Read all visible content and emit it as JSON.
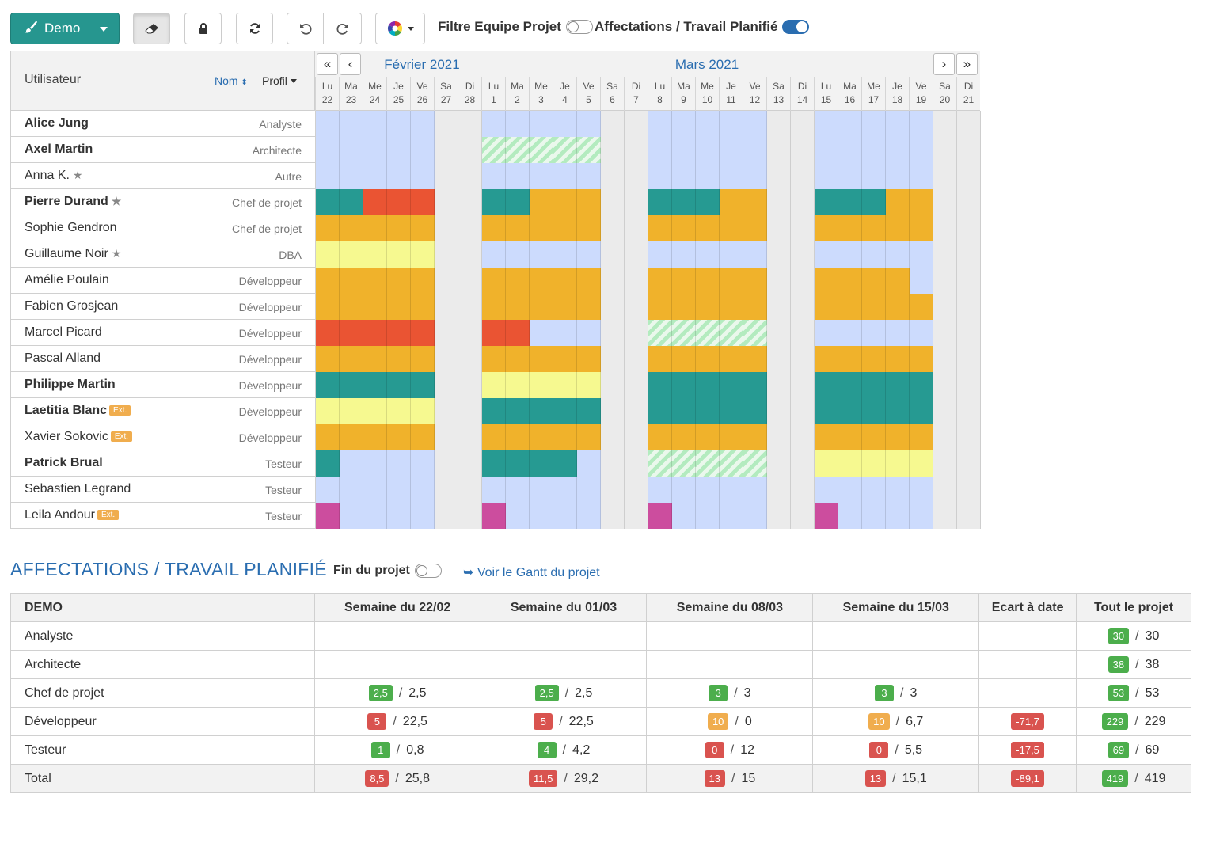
{
  "toolbar": {
    "project_button": "Demo",
    "filter_team_label": "Filtre Equipe Projet",
    "filter_team_on": false,
    "affectations_label": "Affectations / Travail Planifié",
    "affectations_on": true
  },
  "planner": {
    "user_header": "Utilisateur",
    "sort_name": "Nom",
    "sort_profile": "Profil",
    "month1": "Février 2021",
    "month2": "Mars 2021",
    "nav_first": "«",
    "nav_prev": "‹",
    "nav_next": "›",
    "nav_last": "»",
    "days": [
      {
        "d": "Lu",
        "n": "22"
      },
      {
        "d": "Ma",
        "n": "23"
      },
      {
        "d": "Me",
        "n": "24"
      },
      {
        "d": "Je",
        "n": "25"
      },
      {
        "d": "Ve",
        "n": "26"
      },
      {
        "d": "Sa",
        "n": "27"
      },
      {
        "d": "Di",
        "n": "28"
      },
      {
        "d": "Lu",
        "n": "1"
      },
      {
        "d": "Ma",
        "n": "2"
      },
      {
        "d": "Me",
        "n": "3"
      },
      {
        "d": "Je",
        "n": "4"
      },
      {
        "d": "Ve",
        "n": "5"
      },
      {
        "d": "Sa",
        "n": "6"
      },
      {
        "d": "Di",
        "n": "7"
      },
      {
        "d": "Lu",
        "n": "8"
      },
      {
        "d": "Ma",
        "n": "9"
      },
      {
        "d": "Me",
        "n": "10"
      },
      {
        "d": "Je",
        "n": "11"
      },
      {
        "d": "Ve",
        "n": "12"
      },
      {
        "d": "Sa",
        "n": "13"
      },
      {
        "d": "Di",
        "n": "14"
      },
      {
        "d": "Lu",
        "n": "15"
      },
      {
        "d": "Ma",
        "n": "16"
      },
      {
        "d": "Me",
        "n": "17"
      },
      {
        "d": "Je",
        "n": "18"
      },
      {
        "d": "Ve",
        "n": "19"
      },
      {
        "d": "Sa",
        "n": "20"
      },
      {
        "d": "Di",
        "n": "21"
      }
    ],
    "ext_label": "Ext.",
    "users": [
      {
        "name": "Alice Jung",
        "profile": "Analyste",
        "bold": true,
        "star": false,
        "ext": false,
        "w": [
          "FFFFF",
          "FFFFF",
          "FFFFF",
          "FFFFF"
        ]
      },
      {
        "name": "Axel Martin",
        "profile": "Architecte",
        "bold": true,
        "star": false,
        "ext": false,
        "w": [
          "FFFFF",
          "HHHHH",
          "FFFFF",
          "FFFFF"
        ]
      },
      {
        "name": "Anna K.",
        "profile": "Autre",
        "bold": false,
        "star": true,
        "ext": false,
        "w": [
          "FFFFF",
          "FFFFF",
          "FFFFF",
          "FFFFF"
        ]
      },
      {
        "name": "Pierre Durand",
        "profile": "Chef de projet",
        "bold": true,
        "star": true,
        "ext": false,
        "w": [
          "TTRRR",
          "TTOOO",
          "TTTOO",
          "TTTOO"
        ]
      },
      {
        "name": "Sophie Gendron",
        "profile": "Chef de projet",
        "bold": false,
        "star": false,
        "ext": false,
        "w": [
          "OOOOO",
          "OOOOO",
          "OOOOO",
          "OOOOO"
        ]
      },
      {
        "name": "Guillaume Noir",
        "profile": "DBA",
        "bold": false,
        "star": true,
        "ext": false,
        "w": [
          "YYYYY",
          "FFFFF",
          "FFFFF",
          "FFFFF"
        ]
      },
      {
        "name": "Amélie Poulain",
        "profile": "Développeur",
        "bold": false,
        "star": false,
        "ext": false,
        "w": [
          "OOOOO",
          "OOOOO",
          "OOOOO",
          "OOOOF"
        ]
      },
      {
        "name": "Fabien Grosjean",
        "profile": "Développeur",
        "bold": false,
        "star": false,
        "ext": false,
        "w": [
          "OOOOO",
          "OOOOO",
          "OOOOO",
          "OOOOO"
        ]
      },
      {
        "name": "Marcel Picard",
        "profile": "Développeur",
        "bold": false,
        "star": false,
        "ext": false,
        "w": [
          "RRRRR",
          "RRFFF",
          "HHHHH",
          "FFFFF"
        ]
      },
      {
        "name": "Pascal Alland",
        "profile": "Développeur",
        "bold": false,
        "star": false,
        "ext": false,
        "w": [
          "OOOOO",
          "OOOOO",
          "OOOOO",
          "OOOOO"
        ]
      },
      {
        "name": "Philippe Martin",
        "profile": "Développeur",
        "bold": true,
        "star": false,
        "ext": false,
        "w": [
          "TTTTT",
          "YYYYY",
          "TTTTT",
          "TTTTT"
        ]
      },
      {
        "name": "Laetitia Blanc",
        "profile": "Développeur",
        "bold": true,
        "star": false,
        "ext": true,
        "w": [
          "YYYYY",
          "TTTTT",
          "TTTTT",
          "TTTTT"
        ]
      },
      {
        "name": "Xavier Sokovic",
        "profile": "Développeur",
        "bold": false,
        "star": false,
        "ext": true,
        "w": [
          "OOOOO",
          "OOOOO",
          "OOOOO",
          "OOOOO"
        ]
      },
      {
        "name": "Patrick Brual",
        "profile": "Testeur",
        "bold": true,
        "star": false,
        "ext": false,
        "w": [
          "TFFFF",
          "TTTTF",
          "HHHHH",
          "YYYYY"
        ]
      },
      {
        "name": "Sebastien Legrand",
        "profile": "Testeur",
        "bold": false,
        "star": false,
        "ext": false,
        "w": [
          "FFFFF",
          "FFFFF",
          "FFFFF",
          "FFFFF"
        ]
      },
      {
        "name": "Leila Andour",
        "profile": "Testeur",
        "bold": false,
        "star": false,
        "ext": true,
        "w": [
          "PFFFF",
          "PFFFF",
          "PFFFF",
          "PFFFF"
        ]
      }
    ]
  },
  "summary": {
    "title": "AFFECTATIONS / TRAVAIL PLANIFIÉ",
    "fin_label": "Fin du projet",
    "fin_on": false,
    "gantt_link": "Voir le Gantt du projet",
    "headers": [
      "DEMO",
      "Semaine du 22/02",
      "Semaine du 01/03",
      "Semaine du 08/03",
      "Semaine du 15/03",
      "Ecart à date",
      "Tout le projet"
    ],
    "rows": [
      {
        "label": "Analyste",
        "cells": [
          null,
          null,
          null,
          null,
          null,
          {
            "v": "30",
            "c": "g",
            "t": "30"
          }
        ]
      },
      {
        "label": "Architecte",
        "cells": [
          null,
          null,
          null,
          null,
          null,
          {
            "v": "38",
            "c": "g",
            "t": "38"
          }
        ]
      },
      {
        "label": "Chef de projet",
        "cells": [
          {
            "v": "2,5",
            "c": "g",
            "t": "2,5"
          },
          {
            "v": "2,5",
            "c": "g",
            "t": "2,5"
          },
          {
            "v": "3",
            "c": "g",
            "t": "3"
          },
          {
            "v": "3",
            "c": "g",
            "t": "3"
          },
          null,
          {
            "v": "53",
            "c": "g",
            "t": "53"
          }
        ]
      },
      {
        "label": "Développeur",
        "cells": [
          {
            "v": "5",
            "c": "r",
            "t": "22,5"
          },
          {
            "v": "5",
            "c": "r",
            "t": "22,5"
          },
          {
            "v": "10",
            "c": "o",
            "t": "0"
          },
          {
            "v": "10",
            "c": "o",
            "t": "6,7"
          },
          {
            "v": "-71,7",
            "c": "r"
          },
          {
            "v": "229",
            "c": "g",
            "t": "229"
          }
        ]
      },
      {
        "label": "Testeur",
        "cells": [
          {
            "v": "1",
            "c": "g",
            "t": "0,8"
          },
          {
            "v": "4",
            "c": "g",
            "t": "4,2"
          },
          {
            "v": "0",
            "c": "r",
            "t": "12"
          },
          {
            "v": "0",
            "c": "r",
            "t": "5,5"
          },
          {
            "v": "-17,5",
            "c": "r"
          },
          {
            "v": "69",
            "c": "g",
            "t": "69"
          }
        ]
      },
      {
        "label": "Total",
        "total": true,
        "cells": [
          {
            "v": "8,5",
            "c": "r",
            "t": "25,8"
          },
          {
            "v": "11,5",
            "c": "r",
            "t": "29,2"
          },
          {
            "v": "13",
            "c": "r",
            "t": "15"
          },
          {
            "v": "13",
            "c": "r",
            "t": "15,1"
          },
          {
            "v": "-89,1",
            "c": "r"
          },
          {
            "v": "419",
            "c": "g",
            "t": "419"
          }
        ]
      }
    ]
  },
  "colors": {
    "teal": "#26968f",
    "blue": "#2a6db0",
    "green": "#4cae4c",
    "red": "#d9534f",
    "orange": "#f0ad4e"
  }
}
